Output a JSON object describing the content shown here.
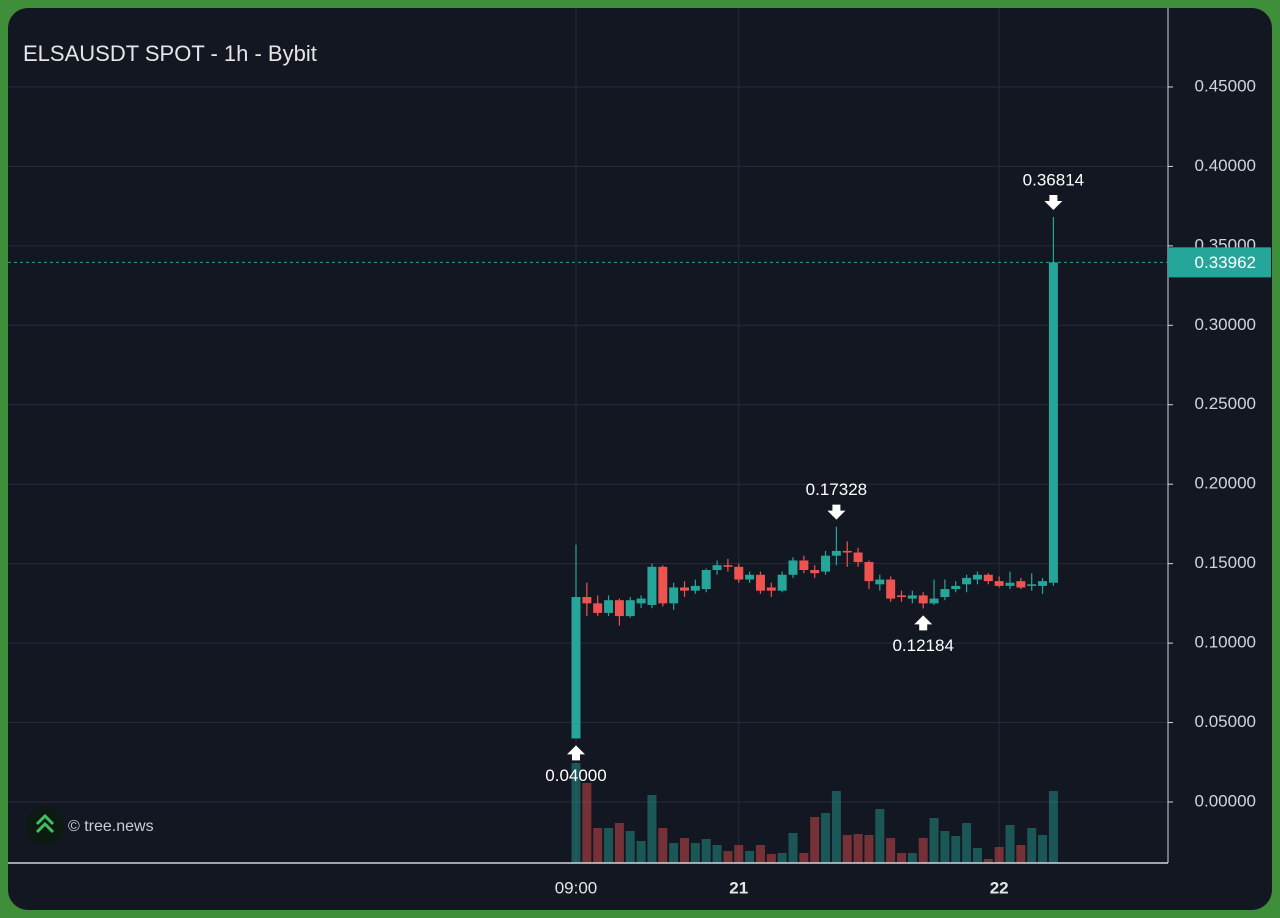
{
  "chart_data": {
    "type": "candlestick",
    "title": "ELSAUSDT SPOT - 1h - Bybit",
    "watermark": "© tree.news",
    "x": [
      "09:00",
      null,
      null,
      null,
      null,
      null,
      null,
      null,
      null,
      null,
      null,
      null,
      null,
      null,
      null,
      "21",
      null,
      null,
      null,
      null,
      null,
      null,
      null,
      null,
      null,
      null,
      null,
      null,
      null,
      null,
      null,
      null,
      null,
      null,
      null,
      null,
      null,
      null,
      null,
      "22",
      null,
      null,
      null,
      null,
      null
    ],
    "open": [
      0.04,
      0.129,
      0.125,
      0.119,
      0.127,
      0.117,
      0.125,
      0.124,
      0.148,
      0.125,
      0.135,
      0.133,
      0.134,
      0.146,
      0.149,
      0.148,
      0.14,
      0.143,
      0.135,
      0.133,
      0.143,
      0.152,
      0.146,
      0.145,
      0.155,
      0.158,
      0.157,
      0.151,
      0.137,
      0.14,
      0.13,
      0.128,
      0.13,
      0.125,
      0.129,
      0.134,
      0.137,
      0.14,
      0.143,
      0.139,
      0.136,
      0.139,
      0.136,
      0.136,
      0.138
    ],
    "high": [
      0.162,
      0.138,
      0.13,
      0.13,
      0.128,
      0.129,
      0.13,
      0.15,
      0.149,
      0.138,
      0.139,
      0.14,
      0.147,
      0.152,
      0.153,
      0.15,
      0.145,
      0.145,
      0.138,
      0.145,
      0.154,
      0.155,
      0.149,
      0.158,
      0.17328,
      0.164,
      0.16,
      0.152,
      0.143,
      0.142,
      0.133,
      0.133,
      0.132,
      0.14,
      0.14,
      0.139,
      0.143,
      0.145,
      0.144,
      0.142,
      0.145,
      0.141,
      0.144,
      0.141,
      0.36814
    ],
    "low": [
      0.04,
      0.117,
      0.117,
      0.117,
      0.111,
      0.116,
      0.122,
      0.122,
      0.123,
      0.121,
      0.129,
      0.131,
      0.132,
      0.143,
      0.145,
      0.138,
      0.138,
      0.131,
      0.129,
      0.132,
      0.141,
      0.144,
      0.141,
      0.143,
      0.149,
      0.148,
      0.148,
      0.134,
      0.133,
      0.126,
      0.126,
      0.125,
      0.12184,
      0.124,
      0.127,
      0.132,
      0.132,
      0.137,
      0.137,
      0.135,
      0.134,
      0.134,
      0.133,
      0.131,
      0.136
    ],
    "close": [
      0.129,
      0.125,
      0.119,
      0.127,
      0.117,
      0.127,
      0.128,
      0.148,
      0.125,
      0.135,
      0.133,
      0.136,
      0.146,
      0.149,
      0.148,
      0.14,
      0.143,
      0.133,
      0.133,
      0.143,
      0.152,
      0.146,
      0.144,
      0.155,
      0.158,
      0.157,
      0.151,
      0.139,
      0.14,
      0.128,
      0.129,
      0.13,
      0.125,
      0.128,
      0.134,
      0.136,
      0.141,
      0.143,
      0.139,
      0.136,
      0.138,
      0.135,
      0.137,
      0.139,
      0.33962
    ],
    "volume": [
      100,
      80,
      35,
      35,
      40,
      32,
      22,
      68,
      35,
      20,
      25,
      20,
      24,
      18,
      12,
      18,
      12,
      18,
      9,
      10,
      30,
      10,
      46,
      50,
      72,
      28,
      29,
      28,
      54,
      25,
      10,
      10,
      25,
      45,
      32,
      27,
      40,
      15,
      4,
      16,
      38,
      18,
      35,
      28,
      72
    ],
    "up_color": "#26a69a",
    "down_color": "#ef5350",
    "ylim": [
      -0.0384,
      0.4997
    ],
    "yticks": [
      {
        "value": 0,
        "label": "0.00000"
      },
      {
        "value": 0.05,
        "label": "0.05000"
      },
      {
        "value": 0.1,
        "label": "0.10000"
      },
      {
        "value": 0.15,
        "label": "0.15000"
      },
      {
        "value": 0.2,
        "label": "0.20000"
      },
      {
        "value": 0.25,
        "label": "0.25000"
      },
      {
        "value": 0.3,
        "label": "0.30000"
      },
      {
        "value": 0.35,
        "label": "0.35000"
      },
      {
        "value": 0.4,
        "label": "0.40000"
      },
      {
        "value": 0.45,
        "label": "0.45000"
      }
    ],
    "last_price": 0.33962,
    "high_marks": [
      0.36814,
      0.17328
    ],
    "low_marks": [
      0.12184,
      {
        "value": 0.04,
        "label": "0.04000"
      }
    ],
    "grid": true
  }
}
